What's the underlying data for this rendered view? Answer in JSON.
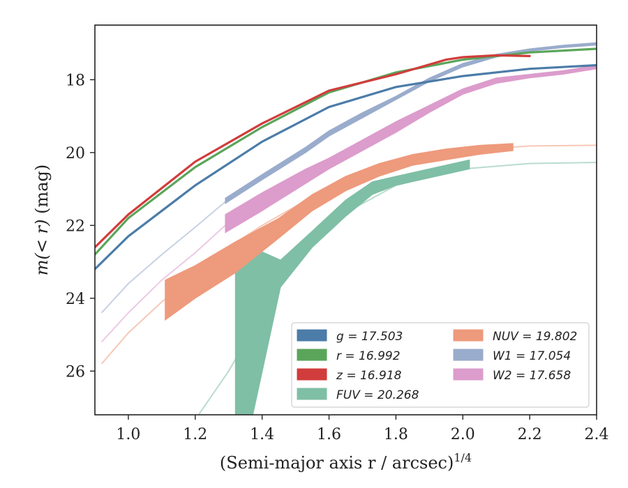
{
  "chart_data": {
    "type": "line",
    "xlabel": "(Semi-major axis r / arcsec)",
    "xlabel_exponent": "1/4",
    "ylabel_prefix": "m(< r)",
    "ylabel_suffix": "(mag)",
    "xlim": [
      0.9,
      2.4
    ],
    "ylim": [
      27.2,
      16.5
    ],
    "y_inverted": true,
    "xticks": [
      1.0,
      1.2,
      1.4,
      1.6,
      1.8,
      2.0,
      2.2,
      2.4
    ],
    "xtick_labels": [
      "1.0",
      "1.2",
      "1.4",
      "1.6",
      "1.8",
      "2.0",
      "2.2",
      "2.4"
    ],
    "yticks": [
      18,
      20,
      22,
      24,
      26
    ],
    "ytick_labels": [
      "18",
      "20",
      "22",
      "24",
      "26"
    ],
    "grid": false,
    "legend_position": "lower-right",
    "series": [
      {
        "name": "g",
        "legend": "g = 17.503",
        "color": "#4c7ca8",
        "kind": "line",
        "x": [
          0.9,
          1.0,
          1.2,
          1.4,
          1.6,
          1.8,
          2.0,
          2.2,
          2.4
        ],
        "y": [
          23.2,
          22.3,
          20.9,
          19.7,
          18.75,
          18.2,
          17.9,
          17.7,
          17.6
        ]
      },
      {
        "name": "r",
        "legend": "r = 16.992",
        "color": "#5aa55a",
        "kind": "line",
        "x": [
          0.9,
          1.0,
          1.2,
          1.4,
          1.6,
          1.8,
          2.0,
          2.2,
          2.4
        ],
        "y": [
          22.8,
          21.8,
          20.4,
          19.3,
          18.35,
          17.8,
          17.45,
          17.25,
          17.15
        ]
      },
      {
        "name": "z",
        "legend": "z = 16.918",
        "color": "#d13c3c",
        "kind": "line",
        "x": [
          0.9,
          1.0,
          1.2,
          1.4,
          1.6,
          1.8,
          1.95,
          2.0,
          2.1,
          2.2
        ],
        "y": [
          22.6,
          21.7,
          20.25,
          19.2,
          18.3,
          17.85,
          17.45,
          17.38,
          17.33,
          17.35
        ]
      },
      {
        "name": "FUV",
        "legend": "FUV = 20.268",
        "color": "#7fbfa6",
        "kind": "band",
        "x": [
          1.32,
          1.37,
          1.455,
          1.55,
          1.65,
          1.73,
          1.8,
          2.02
        ],
        "y_upper": [
          22.5,
          22.6,
          22.95,
          22.15,
          21.3,
          20.8,
          20.65,
          20.2
        ],
        "y_lower": [
          27.3,
          27.3,
          23.7,
          22.6,
          21.75,
          21.15,
          20.9,
          20.45
        ],
        "extrapolation_x": [
          1.15,
          1.3,
          1.45,
          1.6,
          1.8,
          2.0,
          2.2,
          2.4
        ],
        "extrapolation_y": [
          28.0,
          26.0,
          23.6,
          21.9,
          20.9,
          20.45,
          20.3,
          20.27
        ]
      },
      {
        "name": "NUV",
        "legend": "NUV = 19.802",
        "color": "#ee9a7c",
        "kind": "band",
        "x": [
          1.11,
          1.2,
          1.32,
          1.45,
          1.55,
          1.65,
          1.75,
          1.85,
          1.95,
          2.05,
          2.15
        ],
        "y_upper": [
          23.5,
          23.1,
          22.45,
          21.8,
          21.15,
          20.65,
          20.3,
          20.05,
          19.9,
          19.8,
          19.75
        ],
        "y_lower": [
          24.6,
          24.0,
          23.3,
          22.35,
          21.6,
          21.05,
          20.65,
          20.35,
          20.2,
          20.05,
          19.95
        ],
        "extrapolation_x": [
          0.92,
          1.0,
          1.1,
          1.2,
          1.3,
          1.4,
          1.6,
          1.8,
          2.0,
          2.2,
          2.4
        ],
        "extrapolation_y": [
          25.8,
          24.95,
          24.1,
          23.35,
          22.6,
          22.0,
          20.95,
          20.25,
          19.95,
          19.82,
          19.8
        ]
      },
      {
        "name": "W1",
        "legend": "W1 = 17.054",
        "color": "#9aaccc",
        "kind": "band",
        "x": [
          1.29,
          1.4,
          1.53,
          1.6,
          1.7,
          1.8,
          1.9,
          2.0,
          2.1,
          2.2,
          2.3,
          2.4
        ],
        "y_upper": [
          21.25,
          20.6,
          19.85,
          19.4,
          18.9,
          18.45,
          17.95,
          17.55,
          17.3,
          17.15,
          17.05,
          16.98
        ],
        "y_lower": [
          21.4,
          20.75,
          20.0,
          19.55,
          19.05,
          18.55,
          18.05,
          17.65,
          17.38,
          17.22,
          17.12,
          17.05
        ],
        "extrapolation_x": [
          0.92,
          1.0,
          1.1,
          1.2,
          1.29
        ],
        "extrapolation_y": [
          24.4,
          23.6,
          22.8,
          22.05,
          21.35
        ]
      },
      {
        "name": "W2",
        "legend": "W2 = 17.658",
        "color": "#dc9ccc",
        "kind": "band",
        "x": [
          1.29,
          1.4,
          1.53,
          1.6,
          1.7,
          1.8,
          1.9,
          2.0,
          2.1,
          2.2,
          2.3,
          2.4
        ],
        "y_upper": [
          21.7,
          21.1,
          20.45,
          20.15,
          19.65,
          19.15,
          18.7,
          18.25,
          17.95,
          17.85,
          17.75,
          17.6
        ],
        "y_lower": [
          22.2,
          21.6,
          20.85,
          20.45,
          19.95,
          19.45,
          18.9,
          18.4,
          18.1,
          17.95,
          17.85,
          17.7
        ],
        "extrapolation_x": [
          0.92,
          1.0,
          1.1,
          1.2,
          1.29
        ],
        "extrapolation_y": [
          25.2,
          24.4,
          23.5,
          22.75,
          22.0
        ]
      }
    ]
  }
}
